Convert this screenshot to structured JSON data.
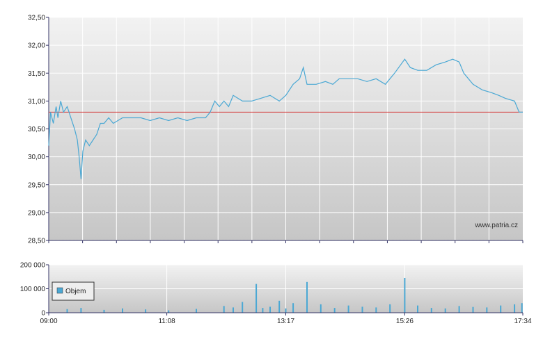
{
  "watermark": "www.patria.cz",
  "colors": {
    "line": "#4aa8d4",
    "reference_line": "#d43a3a",
    "volume": "#4aa8d4",
    "grid": "#ffffff",
    "axis": "#333366",
    "bg_top": "#f2f2f2",
    "bg_bottom": "#c6c6c6"
  },
  "chart_data": [
    {
      "type": "line",
      "name": "price",
      "grid": true,
      "y_tick_labels": [
        "32,50",
        "32,00",
        "31,50",
        "31,00",
        "30,50",
        "30,00",
        "29,50",
        "29,00",
        "28,50"
      ],
      "y_ticks": [
        32.5,
        32.0,
        31.5,
        31.0,
        30.5,
        30.0,
        29.5,
        29.0,
        28.5
      ],
      "ylim": [
        28.5,
        32.5
      ],
      "x_range": [
        "09:00",
        "17:34"
      ],
      "reference_value": 30.8,
      "series": [
        {
          "points": [
            [
              "09:00",
              30.2
            ],
            [
              "09:02",
              30.8
            ],
            [
              "09:05",
              30.6
            ],
            [
              "09:08",
              30.9
            ],
            [
              "09:10",
              30.7
            ],
            [
              "09:13",
              31.0
            ],
            [
              "09:16",
              30.8
            ],
            [
              "09:20",
              30.9
            ],
            [
              "09:24",
              30.7
            ],
            [
              "09:28",
              30.5
            ],
            [
              "09:31",
              30.3
            ],
            [
              "09:33",
              30.0
            ],
            [
              "09:35",
              29.6
            ],
            [
              "09:37",
              30.1
            ],
            [
              "09:40",
              30.3
            ],
            [
              "09:44",
              30.2
            ],
            [
              "09:48",
              30.3
            ],
            [
              "09:52",
              30.4
            ],
            [
              "09:56",
              30.6
            ],
            [
              "10:00",
              30.6
            ],
            [
              "10:05",
              30.7
            ],
            [
              "10:10",
              30.6
            ],
            [
              "10:20",
              30.7
            ],
            [
              "10:30",
              30.7
            ],
            [
              "10:40",
              30.7
            ],
            [
              "10:50",
              30.65
            ],
            [
              "11:00",
              30.7
            ],
            [
              "11:10",
              30.65
            ],
            [
              "11:20",
              30.7
            ],
            [
              "11:30",
              30.65
            ],
            [
              "11:40",
              30.7
            ],
            [
              "11:50",
              30.7
            ],
            [
              "11:55",
              30.8
            ],
            [
              "12:00",
              31.0
            ],
            [
              "12:05",
              30.9
            ],
            [
              "12:10",
              31.0
            ],
            [
              "12:15",
              30.9
            ],
            [
              "12:20",
              31.1
            ],
            [
              "12:30",
              31.0
            ],
            [
              "12:40",
              31.0
            ],
            [
              "12:50",
              31.05
            ],
            [
              "13:00",
              31.1
            ],
            [
              "13:10",
              31.0
            ],
            [
              "13:17",
              31.1
            ],
            [
              "13:25",
              31.3
            ],
            [
              "13:32",
              31.4
            ],
            [
              "13:36",
              31.6
            ],
            [
              "13:40",
              31.3
            ],
            [
              "13:50",
              31.3
            ],
            [
              "14:00",
              31.35
            ],
            [
              "14:08",
              31.3
            ],
            [
              "14:15",
              31.4
            ],
            [
              "14:25",
              31.4
            ],
            [
              "14:35",
              31.4
            ],
            [
              "14:45",
              31.35
            ],
            [
              "14:55",
              31.4
            ],
            [
              "15:05",
              31.3
            ],
            [
              "15:15",
              31.5
            ],
            [
              "15:26",
              31.75
            ],
            [
              "15:32",
              31.6
            ],
            [
              "15:40",
              31.55
            ],
            [
              "15:50",
              31.55
            ],
            [
              "16:00",
              31.65
            ],
            [
              "16:10",
              31.7
            ],
            [
              "16:18",
              31.75
            ],
            [
              "16:25",
              31.7
            ],
            [
              "16:30",
              31.5
            ],
            [
              "16:40",
              31.3
            ],
            [
              "16:50",
              31.2
            ],
            [
              "17:00",
              31.15
            ],
            [
              "17:08",
              31.1
            ],
            [
              "17:15",
              31.05
            ],
            [
              "17:25",
              31.0
            ],
            [
              "17:30",
              30.8
            ],
            [
              "17:34",
              30.8
            ]
          ]
        }
      ]
    },
    {
      "type": "bar",
      "name": "volume",
      "grid": true,
      "legend": "Objem",
      "legend_position": "bottom-left",
      "y_tick_labels": [
        "200 000",
        "100 000",
        "0"
      ],
      "y_ticks": [
        200000,
        100000,
        0
      ],
      "ylim": [
        0,
        200000
      ],
      "x_tick_labels": [
        "09:00",
        "11:08",
        "13:17",
        "15:26",
        "17:34"
      ],
      "bars": [
        [
          "09:20",
          15000
        ],
        [
          "09:35",
          20000
        ],
        [
          "10:00",
          12000
        ],
        [
          "10:20",
          18000
        ],
        [
          "10:45",
          14000
        ],
        [
          "11:10",
          10000
        ],
        [
          "11:40",
          16000
        ],
        [
          "12:10",
          28000
        ],
        [
          "12:20",
          22000
        ],
        [
          "12:30",
          45000
        ],
        [
          "12:45",
          120000
        ],
        [
          "12:52",
          20000
        ],
        [
          "13:00",
          25000
        ],
        [
          "13:10",
          50000
        ],
        [
          "13:17",
          18000
        ],
        [
          "13:25",
          40000
        ],
        [
          "13:40",
          128000
        ],
        [
          "13:55",
          35000
        ],
        [
          "14:10",
          20000
        ],
        [
          "14:25",
          30000
        ],
        [
          "14:40",
          25000
        ],
        [
          "14:55",
          22000
        ],
        [
          "15:10",
          35000
        ],
        [
          "15:26",
          145000
        ],
        [
          "15:40",
          30000
        ],
        [
          "15:55",
          20000
        ],
        [
          "16:10",
          18000
        ],
        [
          "16:25",
          28000
        ],
        [
          "16:40",
          24000
        ],
        [
          "16:55",
          22000
        ],
        [
          "17:10",
          30000
        ],
        [
          "17:25",
          35000
        ],
        [
          "17:33",
          40000
        ]
      ]
    }
  ]
}
